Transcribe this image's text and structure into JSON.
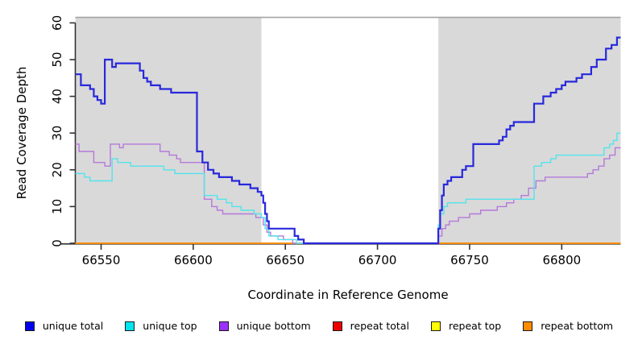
{
  "figure": {
    "x_axis": {
      "title": "Coordinate in Reference Genome",
      "ticks": [
        66550,
        66600,
        66650,
        66700,
        66750,
        66800
      ],
      "range": [
        66536,
        66832
      ]
    },
    "y_axis": {
      "title": "Read Coverage Depth",
      "ticks": [
        0,
        10,
        20,
        30,
        40,
        50,
        60
      ],
      "range": [
        0,
        61.5
      ]
    },
    "shading": {
      "fill": "#d9d9d9",
      "top_border": "#a3a3a3",
      "gap_fill": "#ffffff",
      "shaded_regions": [
        [
          66536,
          66637
        ],
        [
          66733,
          66832
        ]
      ],
      "gap_region": [
        66637,
        66733
      ]
    },
    "axis_color": "#333333"
  },
  "chart_data": {
    "type": "line",
    "style": "step",
    "title": "",
    "xlabel": "Coordinate in Reference Genome",
    "ylabel": "Read Coverage Depth",
    "xlim": [
      66536,
      66832
    ],
    "ylim": [
      0,
      60
    ],
    "grid": false,
    "legend_position": "bottom",
    "background_bands": "gray outside region 66637-66733, white inside (zero-coverage gap)",
    "series": [
      {
        "name": "repeat total",
        "color": "#dd0000",
        "width": 1.4,
        "points": [
          [
            66536,
            0
          ]
        ]
      },
      {
        "name": "repeat top",
        "color": "#f0f000",
        "width": 1.4,
        "points": [
          [
            66536,
            0
          ]
        ]
      },
      {
        "name": "repeat bottom",
        "color": "#ff8c00",
        "width": 1.8,
        "points": [
          [
            66536,
            0
          ]
        ]
      },
      {
        "name": "unique bottom",
        "color": "#b579da",
        "width": 1.4,
        "points": [
          [
            66536,
            27
          ],
          [
            66538,
            25
          ],
          [
            66546,
            22
          ],
          [
            66552,
            21
          ],
          [
            66555,
            27
          ],
          [
            66560,
            26
          ],
          [
            66562,
            27
          ],
          [
            66582,
            25
          ],
          [
            66587,
            24
          ],
          [
            66591,
            23
          ],
          [
            66593,
            22
          ],
          [
            66606,
            12
          ],
          [
            66610,
            10
          ],
          [
            66613,
            9
          ],
          [
            66616,
            8
          ],
          [
            66634,
            7
          ],
          [
            66638,
            5
          ],
          [
            66640,
            3
          ],
          [
            66642,
            2
          ],
          [
            66649,
            1
          ],
          [
            66654,
            0
          ],
          [
            66733,
            2
          ],
          [
            66735,
            4
          ],
          [
            66737,
            5
          ],
          [
            66739,
            6
          ],
          [
            66744,
            7
          ],
          [
            66750,
            8
          ],
          [
            66756,
            9
          ],
          [
            66765,
            10
          ],
          [
            66770,
            11
          ],
          [
            66774,
            12
          ],
          [
            66778,
            13
          ],
          [
            66782,
            15
          ],
          [
            66786,
            17
          ],
          [
            66791,
            18
          ],
          [
            66814,
            19
          ],
          [
            66817,
            20
          ],
          [
            66820,
            21
          ],
          [
            66823,
            23
          ],
          [
            66826,
            24
          ],
          [
            66829,
            26
          ]
        ]
      },
      {
        "name": "unique top",
        "color": "#52e4ec",
        "width": 1.4,
        "points": [
          [
            66536,
            19
          ],
          [
            66541,
            18
          ],
          [
            66544,
            17
          ],
          [
            66556,
            23
          ],
          [
            66559,
            22
          ],
          [
            66566,
            21
          ],
          [
            66584,
            20
          ],
          [
            66590,
            19
          ],
          [
            66606,
            13
          ],
          [
            66613,
            12
          ],
          [
            66618,
            11
          ],
          [
            66621,
            10
          ],
          [
            66626,
            9
          ],
          [
            66633,
            8
          ],
          [
            66637,
            7
          ],
          [
            66639,
            4
          ],
          [
            66641,
            2
          ],
          [
            66646,
            1
          ],
          [
            66656,
            0
          ],
          [
            66733,
            5
          ],
          [
            66734,
            8
          ],
          [
            66736,
            10
          ],
          [
            66738,
            11
          ],
          [
            66748,
            12
          ],
          [
            66785,
            21
          ],
          [
            66789,
            22
          ],
          [
            66794,
            23
          ],
          [
            66797,
            24
          ],
          [
            66823,
            26
          ],
          [
            66826,
            27
          ],
          [
            66828,
            28
          ],
          [
            66830,
            30
          ]
        ]
      },
      {
        "name": "unique total",
        "color": "#2828dc",
        "width": 2.2,
        "points": [
          [
            66536,
            46
          ],
          [
            66539,
            43
          ],
          [
            66544,
            42
          ],
          [
            66546,
            40
          ],
          [
            66548,
            39
          ],
          [
            66550,
            38
          ],
          [
            66552,
            50
          ],
          [
            66556,
            48
          ],
          [
            66558,
            49
          ],
          [
            66571,
            47
          ],
          [
            66573,
            45
          ],
          [
            66575,
            44
          ],
          [
            66577,
            43
          ],
          [
            66582,
            42
          ],
          [
            66588,
            41
          ],
          [
            66602,
            25
          ],
          [
            66605,
            22
          ],
          [
            66608,
            20
          ],
          [
            66611,
            19
          ],
          [
            66614,
            18
          ],
          [
            66621,
            17
          ],
          [
            66625,
            16
          ],
          [
            66631,
            15
          ],
          [
            66635,
            14
          ],
          [
            66637,
            13
          ],
          [
            66638,
            11
          ],
          [
            66639,
            8
          ],
          [
            66640,
            6
          ],
          [
            66641,
            4
          ],
          [
            66655,
            2
          ],
          [
            66657,
            1
          ],
          [
            66660,
            0
          ],
          [
            66733,
            4
          ],
          [
            66734,
            9
          ],
          [
            66735,
            13
          ],
          [
            66736,
            16
          ],
          [
            66738,
            17
          ],
          [
            66740,
            18
          ],
          [
            66746,
            20
          ],
          [
            66748,
            21
          ],
          [
            66752,
            27
          ],
          [
            66766,
            28
          ],
          [
            66768,
            29
          ],
          [
            66770,
            31
          ],
          [
            66772,
            32
          ],
          [
            66774,
            33
          ],
          [
            66785,
            38
          ],
          [
            66790,
            40
          ],
          [
            66794,
            41
          ],
          [
            66797,
            42
          ],
          [
            66800,
            43
          ],
          [
            66802,
            44
          ],
          [
            66808,
            45
          ],
          [
            66811,
            46
          ],
          [
            66816,
            48
          ],
          [
            66819,
            50
          ],
          [
            66824,
            53
          ],
          [
            66827,
            54
          ],
          [
            66830,
            56
          ]
        ]
      }
    ]
  },
  "legend": {
    "items": [
      {
        "label": "unique total",
        "fill": "#0000ee"
      },
      {
        "label": "unique top",
        "fill": "#00e5ee"
      },
      {
        "label": "unique bottom",
        "fill": "#9b30ff"
      },
      {
        "label": "repeat total",
        "fill": "#ee0000"
      },
      {
        "label": "repeat top",
        "fill": "#ffff00"
      },
      {
        "label": "repeat bottom",
        "fill": "#ff8c00"
      }
    ]
  }
}
